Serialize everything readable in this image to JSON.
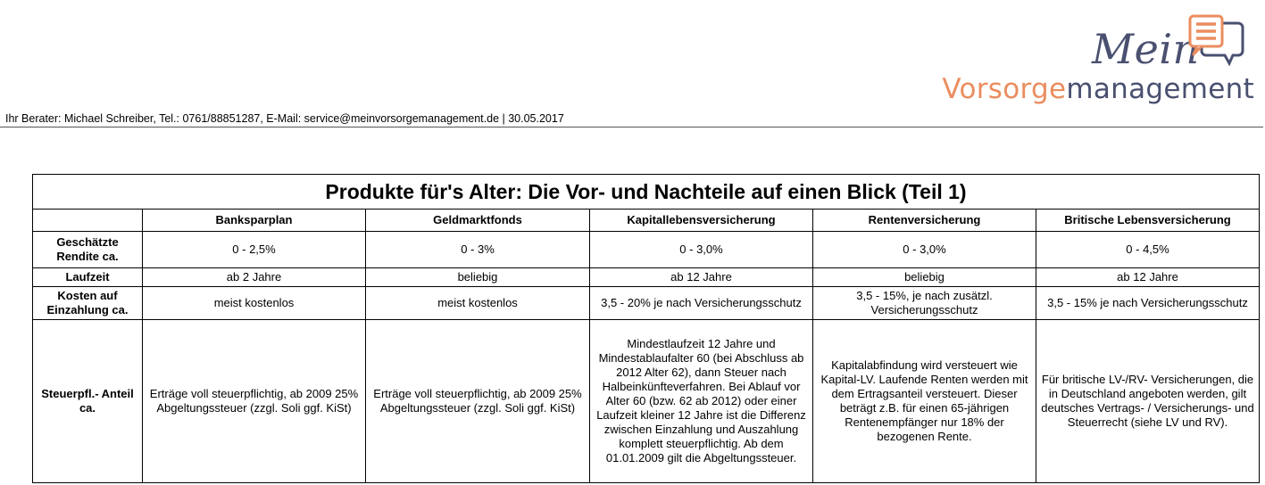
{
  "logo": {
    "word_top": "Mein",
    "word_part1": "Vorsorge",
    "word_part2": "management",
    "icon": "chat-bubbles-icon",
    "colors": {
      "dark": "#4a5070",
      "accent": "#ea8d5f"
    }
  },
  "advisor_line": "Ihr Berater: Michael Schreiber, Tel.: 0761/88851287, E-Mail: service@meinvorsorgemanagement.de | 30.05.2017",
  "table": {
    "title": "Produkte für's Alter: Die Vor- und Nachteile auf einen Blick (Teil 1)",
    "columns": [
      "Banksparplan",
      "Geldmarktfonds",
      "Kapitallebensversicherung",
      "Rentenversicherung",
      "Britische Lebensversicherung"
    ],
    "rows": [
      {
        "label": "Geschätzte Rendite ca.",
        "cells": [
          "0 - 2,5%",
          "0 - 3%",
          "0 - 3,0%",
          "0 - 3,0%",
          "0 - 4,5%"
        ]
      },
      {
        "label": "Laufzeit",
        "cells": [
          "ab 2 Jahre",
          "beliebig",
          "ab 12 Jahre",
          "beliebig",
          "ab 12 Jahre"
        ]
      },
      {
        "label": "Kosten auf Einzahlung ca.",
        "cells": [
          "meist kostenlos",
          "meist kostenlos",
          "3,5 - 20% je nach Versicherungsschutz",
          "3,5 - 15%, je nach zusätzl. Versicherungsschutz",
          "3,5 - 15% je nach Versicherungsschutz"
        ]
      },
      {
        "label": "Steuerpfl.- Anteil ca.",
        "cells": [
          "Erträge voll steuerpflichtig, ab 2009 25% Abgeltungssteuer (zzgl. Soli ggf. KiSt)",
          "Erträge voll steuerpflichtig, ab 2009 25% Abgeltungssteuer (zzgl. Soli ggf. KiSt)",
          "Mindestlaufzeit 12 Jahre und Mindestablaufalter 60 (bei Abschluss ab 2012 Alter 62), dann Steuer nach Halbeinkünfteverfahren. Bei Ablauf vor Alter 60 (bzw. 62 ab 2012) oder einer Laufzeit kleiner 12 Jahre ist die Differenz zwischen Einzahlung und Auszahlung komplett steuerpflichtig. Ab dem 01.01.2009 gilt die Abgeltungssteuer.",
          "Kapitalabfindung wird versteuert wie Kapital-LV. Laufende Renten werden mit dem Ertragsanteil versteuert. Dieser beträgt z.B. für einen 65-jährigen Rentenempfänger nur 18% der bezogenen Rente.",
          "Für britische LV-/RV- Versicherungen, die in Deutschland angeboten werden, gilt deutsches Vertrags- / Versicherungs- und Steuerrecht (siehe LV und RV)."
        ]
      }
    ]
  }
}
